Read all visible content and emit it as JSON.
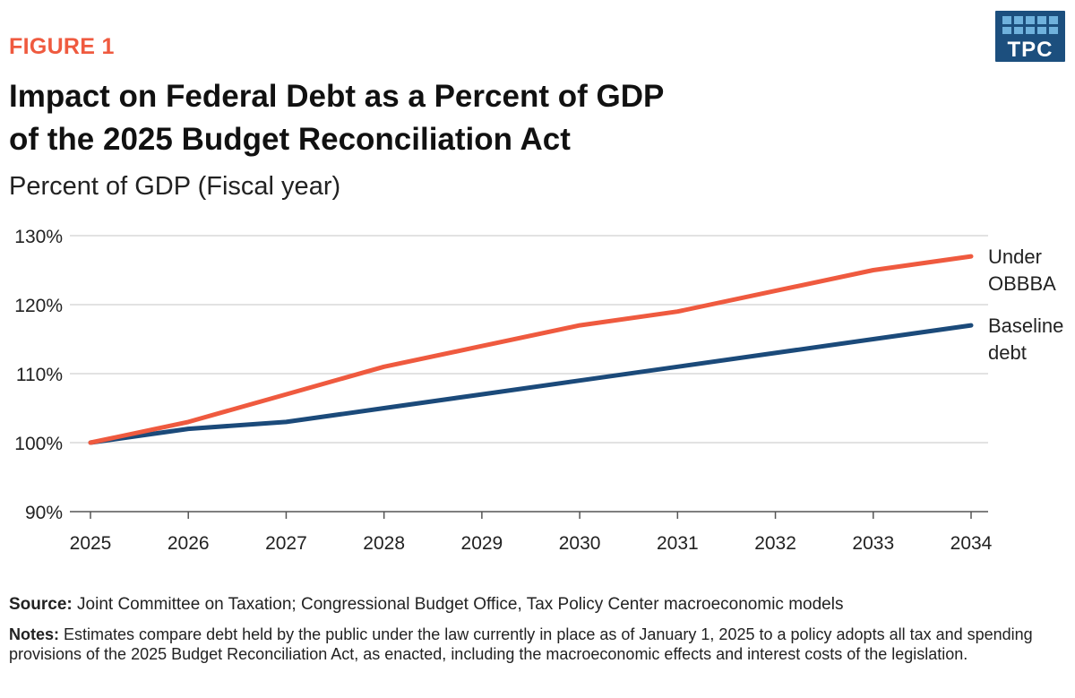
{
  "figure_label": "FIGURE 1",
  "title_line1": "Impact on Federal Debt as a Percent of GDP",
  "title_line2": "of the 2025 Budget Reconciliation Act",
  "logo": {
    "text": "TPC",
    "color": "#1c4f7e"
  },
  "colors": {
    "accent": "#ef5a3f",
    "baseline": "#1b4a7a",
    "grid": "#d9d9d9"
  },
  "source": {
    "label": "Source:",
    "text": "Joint Committee on Taxation; Congressional Budget Office, Tax Policy Center macroeconomic models"
  },
  "notes": {
    "label": "Notes:",
    "text": "Estimates compare debt held by the public under the law currently in place as of January 1, 2025 to a policy adopts all tax and spending provisions of the 2025 Budget Reconciliation Act, as enacted, including the macroeconomic effects and interest costs of the legislation."
  },
  "chart_data": {
    "type": "line",
    "title": "Impact on Federal Debt as a Percent of GDP of the 2025 Budget Reconciliation Act",
    "subtitle": "Percent of GDP (Fiscal year)",
    "x": [
      2025,
      2026,
      2027,
      2028,
      2029,
      2030,
      2031,
      2032,
      2033,
      2034
    ],
    "ylim": [
      90,
      130
    ],
    "yticks": [
      90,
      100,
      110,
      120,
      130
    ],
    "ytick_labels": [
      "90%",
      "100%",
      "110%",
      "120%",
      "130%"
    ],
    "grid": "horizontal",
    "legend": "direct-labels-right",
    "series": [
      {
        "name_lines": [
          "Under",
          "OBBBA"
        ],
        "color": "#ef5a3f",
        "values": [
          100,
          103,
          107,
          111,
          114,
          117,
          119,
          122,
          125,
          127
        ]
      },
      {
        "name_lines": [
          "Baseline",
          "debt"
        ],
        "color": "#1b4a7a",
        "values": [
          100,
          102,
          103,
          105,
          107,
          109,
          111,
          113,
          115,
          117
        ]
      }
    ]
  }
}
